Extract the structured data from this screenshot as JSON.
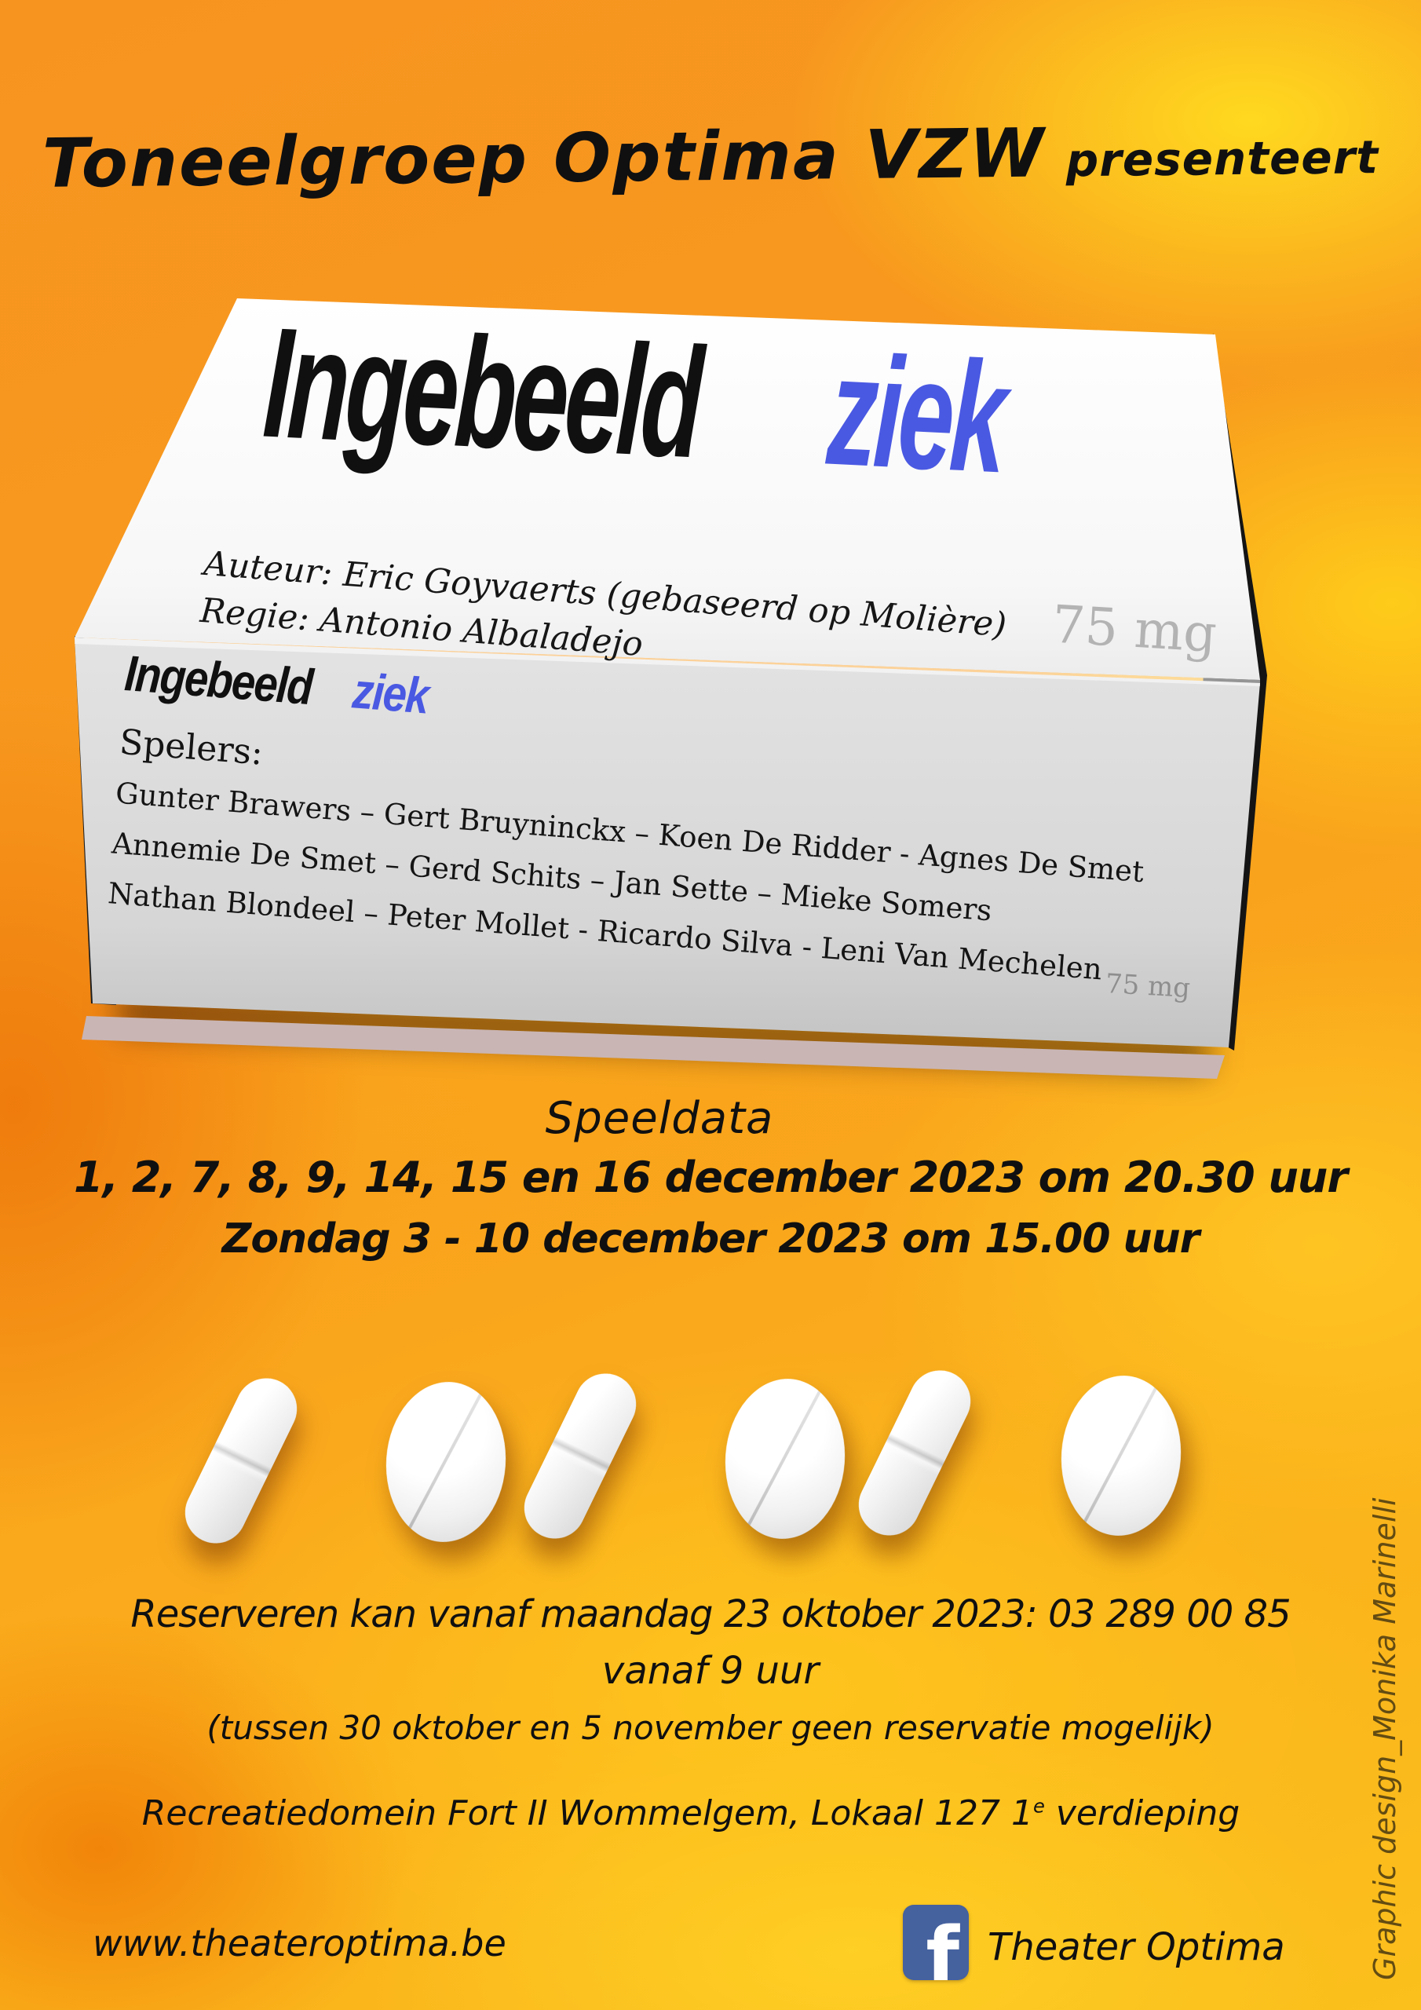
{
  "colors": {
    "accent_blue": "#4A59E2",
    "facebook_blue": "#45619E"
  },
  "header": {
    "presenter_main": "Toneelgroep Optima VZW",
    "presenter_suffix": "presenteert"
  },
  "box": {
    "lid_title_black": "Ingebeeld",
    "lid_title_blue": "ziek",
    "author_line": "Auteur: Eric Goyvaerts (gebaseerd op Molière)",
    "director_line": "Regie: Antonio Albaladejo",
    "dosage_lid": "75 mg",
    "front_title_black": "Ingebeeld",
    "front_title_blue": "ziek",
    "cast_heading": "Spelers:",
    "cast_lines": [
      "Gunter Brawers – Gert Bruyninckx – Koen De Ridder - Agnes De Smet",
      "Annemie De Smet – Gerd Schits – Jan Sette – Mieke Somers",
      "Nathan Blondeel – Peter Mollet - Ricardo Silva - Leni Van Mechelen"
    ],
    "dosage_front": "75 mg"
  },
  "schedule": {
    "heading": "Speeldata",
    "line_evening": "1, 2, 7, 8, 9, 14, 15 en 16 december 2023 om 20.30 uur",
    "line_matinee": "Zondag 3 - 10 december 2023 om 15.00 uur"
  },
  "reservation": {
    "line_phone": "Reserveren kan vanaf maandag 23 oktober 2023: 03 289 00 85",
    "line_time": "vanaf 9 uur",
    "line_note": "(tussen 30 oktober en 5 november geen reservatie mogelijk)"
  },
  "venue": {
    "text_before_sup": "Recreatiedomein Fort II Wommelgem, Lokaal 127 1",
    "sup": "e",
    "text_after_sup": " verdieping"
  },
  "footer": {
    "website": "www.theateroptima.be",
    "facebook_letter": "f",
    "facebook_label": "Theater Optima"
  },
  "credit": "Graphic design_Monika Marinelli",
  "pills": [
    {
      "type": "capsule"
    },
    {
      "type": "tablet"
    },
    {
      "type": "capsule"
    },
    {
      "type": "tablet"
    },
    {
      "type": "capsule"
    },
    {
      "type": "tablet"
    }
  ]
}
